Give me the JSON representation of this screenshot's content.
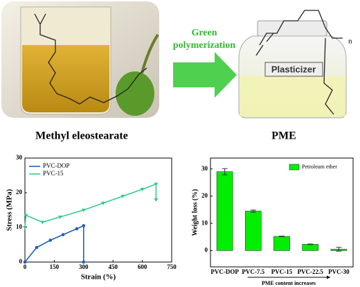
{
  "scheme": {
    "arrow_label": [
      "Green",
      "polymerization"
    ],
    "jar_label": "Plasticizer",
    "polymer_subscript": "n",
    "left_caption": "Methyl eleostearate",
    "right_caption": "PME"
  },
  "chart_data": [
    {
      "type": "line",
      "x_label": "Strain (%)",
      "y_label": "Stress (MPa)",
      "xlim": [
        0,
        750
      ],
      "xticks": [
        0,
        150,
        300,
        450,
        600,
        750
      ],
      "ylim": [
        0,
        30
      ],
      "yticks": [
        0,
        10,
        20,
        30
      ],
      "legend": "upper left",
      "series": [
        {
          "name": "PVC-DOP",
          "color": "#1f5fb8",
          "marker": "circle",
          "x": [
            0,
            60,
            130,
            195,
            265,
            300,
            300
          ],
          "values": [
            0,
            4.2,
            6.3,
            7.9,
            9.6,
            10.5,
            0
          ]
        },
        {
          "name": "PVC-15",
          "color": "#33cc88",
          "marker": "triangle",
          "x": [
            0,
            5,
            90,
            180,
            300,
            400,
            500,
            600,
            670,
            670
          ],
          "values": [
            10,
            13.5,
            11.5,
            13,
            15,
            17,
            19,
            21,
            22.5,
            18
          ]
        }
      ]
    },
    {
      "type": "bar",
      "y_label": "Weight loss (%)",
      "annotation": "PME content increases",
      "categories": [
        "PVC-DOP",
        "PVC-7.5",
        "PVC-15",
        "PVC-22.5",
        "PVC-30"
      ],
      "ylim": [
        -6,
        34
      ],
      "yticks": [
        0,
        10,
        20,
        30
      ],
      "legend": "upper right",
      "series": [
        {
          "name": "Petroleum ether",
          "color": "#00ee00",
          "values": [
            29,
            14.5,
            5.2,
            2.3,
            0.5
          ],
          "errors": [
            1.1,
            0.4,
            0.1,
            0.1,
            0.7
          ]
        }
      ]
    }
  ]
}
